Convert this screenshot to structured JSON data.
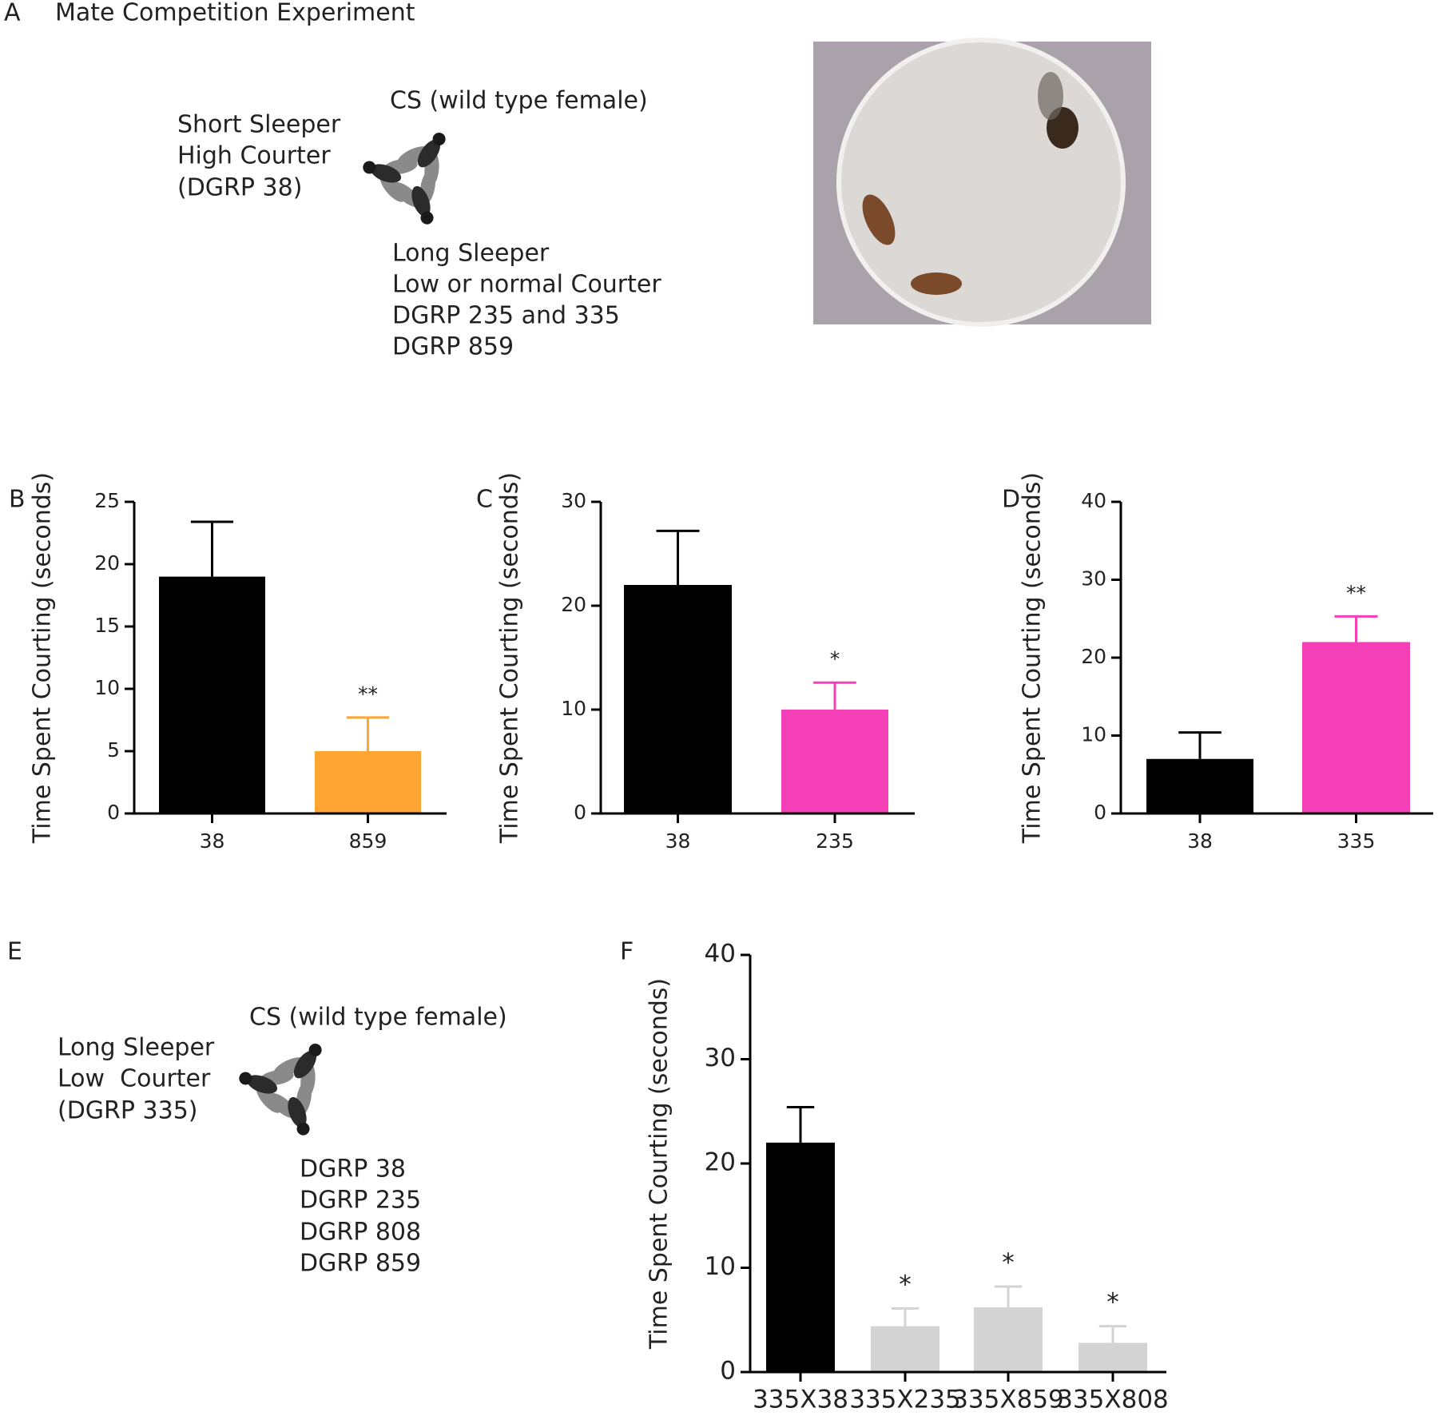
{
  "panel_labels": [
    "A",
    "B",
    "C",
    "D",
    "E",
    "F"
  ],
  "panel_a": {
    "title": "Mate Competition Experiment",
    "female": "CS (wild type female)",
    "short_sleeper": [
      "Short Sleeper",
      "High Courter",
      "(DGRP 38)"
    ],
    "long_sleeper": [
      "Long Sleeper",
      "Low or normal Courter",
      "DGRP 235 and 335",
      "DGRP 859"
    ]
  },
  "panel_e": {
    "female": "CS (wild type female)",
    "long_sleeper": [
      "Long Sleeper",
      "Low  Courter",
      "(DGRP 335)"
    ],
    "lines": [
      "DGRP 38",
      "DGRP 235",
      "DGRP 808",
      "DGRP 859"
    ]
  },
  "chart_data": [
    {
      "type": "bar",
      "ylabel": "Time Spent Courting (seconds)",
      "categories": [
        "38",
        "859"
      ],
      "values": [
        19,
        5
      ],
      "errors": [
        4.4,
        2.7
      ],
      "colors": [
        "#000000",
        "#ffa533"
      ],
      "annotations": [
        null,
        "**"
      ],
      "ylim": [
        0,
        25
      ],
      "yticks": [
        0,
        5,
        10,
        15,
        20,
        25
      ]
    },
    {
      "type": "bar",
      "ylabel": "Time Spent Courting (seconds)",
      "categories": [
        "38",
        "235"
      ],
      "values": [
        22,
        10
      ],
      "errors": [
        5.2,
        2.6
      ],
      "colors": [
        "#000000",
        "#f53fb6"
      ],
      "annotations": [
        null,
        "*"
      ],
      "ylim": [
        0,
        30
      ],
      "yticks": [
        0,
        10,
        20,
        30
      ]
    },
    {
      "type": "bar",
      "ylabel": "Time Spent Courting (seconds)",
      "categories": [
        "38",
        "335"
      ],
      "values": [
        7,
        22
      ],
      "errors": [
        3.4,
        3.3
      ],
      "colors": [
        "#000000",
        "#f53fb6"
      ],
      "annotations": [
        null,
        "**"
      ],
      "ylim": [
        0,
        40
      ],
      "yticks": [
        0,
        10,
        20,
        30,
        40
      ]
    },
    {
      "type": "bar",
      "ylabel": "Time Spent Courting (seconds)",
      "categories": [
        "335X38",
        "335X235",
        "335X859",
        "335X808"
      ],
      "values": [
        22,
        4.4,
        6.2,
        2.8
      ],
      "errors": [
        3.4,
        1.7,
        2.0,
        1.6
      ],
      "colors": [
        "#000000",
        "#d3d3d3",
        "#d3d3d3",
        "#d3d3d3"
      ],
      "annotations": [
        null,
        "*",
        "*",
        "*"
      ],
      "ylim": [
        0,
        40
      ],
      "yticks": [
        0,
        10,
        20,
        30,
        40
      ]
    }
  ]
}
